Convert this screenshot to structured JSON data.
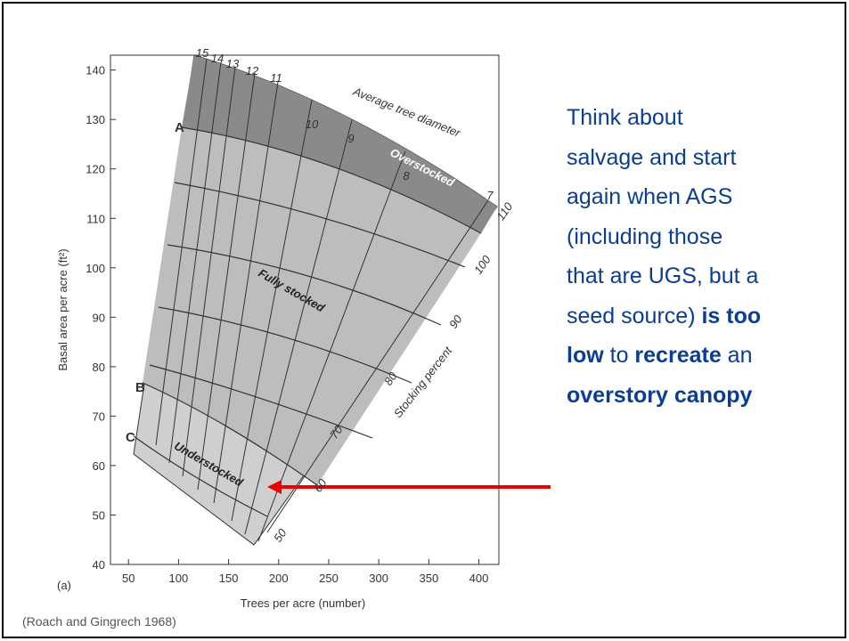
{
  "chart_data": {
    "type": "stocking-guide",
    "xlabel": "Trees per acre (number)",
    "ylabel": "Basal area per acre (ft²)",
    "panel_label": "(a)",
    "xlim": [
      32,
      420
    ],
    "xticks": [
      50,
      100,
      150,
      200,
      250,
      300,
      350,
      400
    ],
    "ylim": [
      40,
      143
    ],
    "yticks": [
      40,
      50,
      60,
      70,
      80,
      90,
      100,
      110,
      120,
      130,
      140
    ],
    "curve_labels": [
      "A",
      "B",
      "C"
    ],
    "region_labels": [
      "Overstocked",
      "Fully stocked",
      "Understocked"
    ],
    "diameter_title": "Average tree diameter",
    "diameter_labels": [
      "15",
      "14",
      "13",
      "12",
      "11",
      "10",
      "9",
      "8",
      "7"
    ],
    "stocking_title": "Stocking percent",
    "stocking_labels": [
      "110",
      "100",
      "90",
      "80",
      "70",
      "60",
      "50"
    ]
  },
  "source": "(Roach and Gingrech 1968)",
  "note": {
    "lines": [
      [
        {
          "text": "Think about",
          "bold": false
        }
      ],
      [
        {
          "text": "salvage and start",
          "bold": false
        }
      ],
      [
        {
          "text": "again when AGS",
          "bold": false
        }
      ],
      [
        {
          "text": "(including those",
          "bold": false
        }
      ],
      [
        {
          "text": "that are UGS, but a",
          "bold": false
        }
      ],
      [
        {
          "text": "seed source) ",
          "bold": false
        },
        {
          "text": "is too",
          "bold": true
        }
      ],
      [
        {
          "text": "low",
          "bold": true
        },
        {
          "text": " to ",
          "bold": false
        },
        {
          "text": "recreate",
          "bold": true
        },
        {
          "text": " an",
          "bold": false
        }
      ],
      [
        {
          "text": "overstory canopy",
          "bold": true
        }
      ]
    ]
  }
}
